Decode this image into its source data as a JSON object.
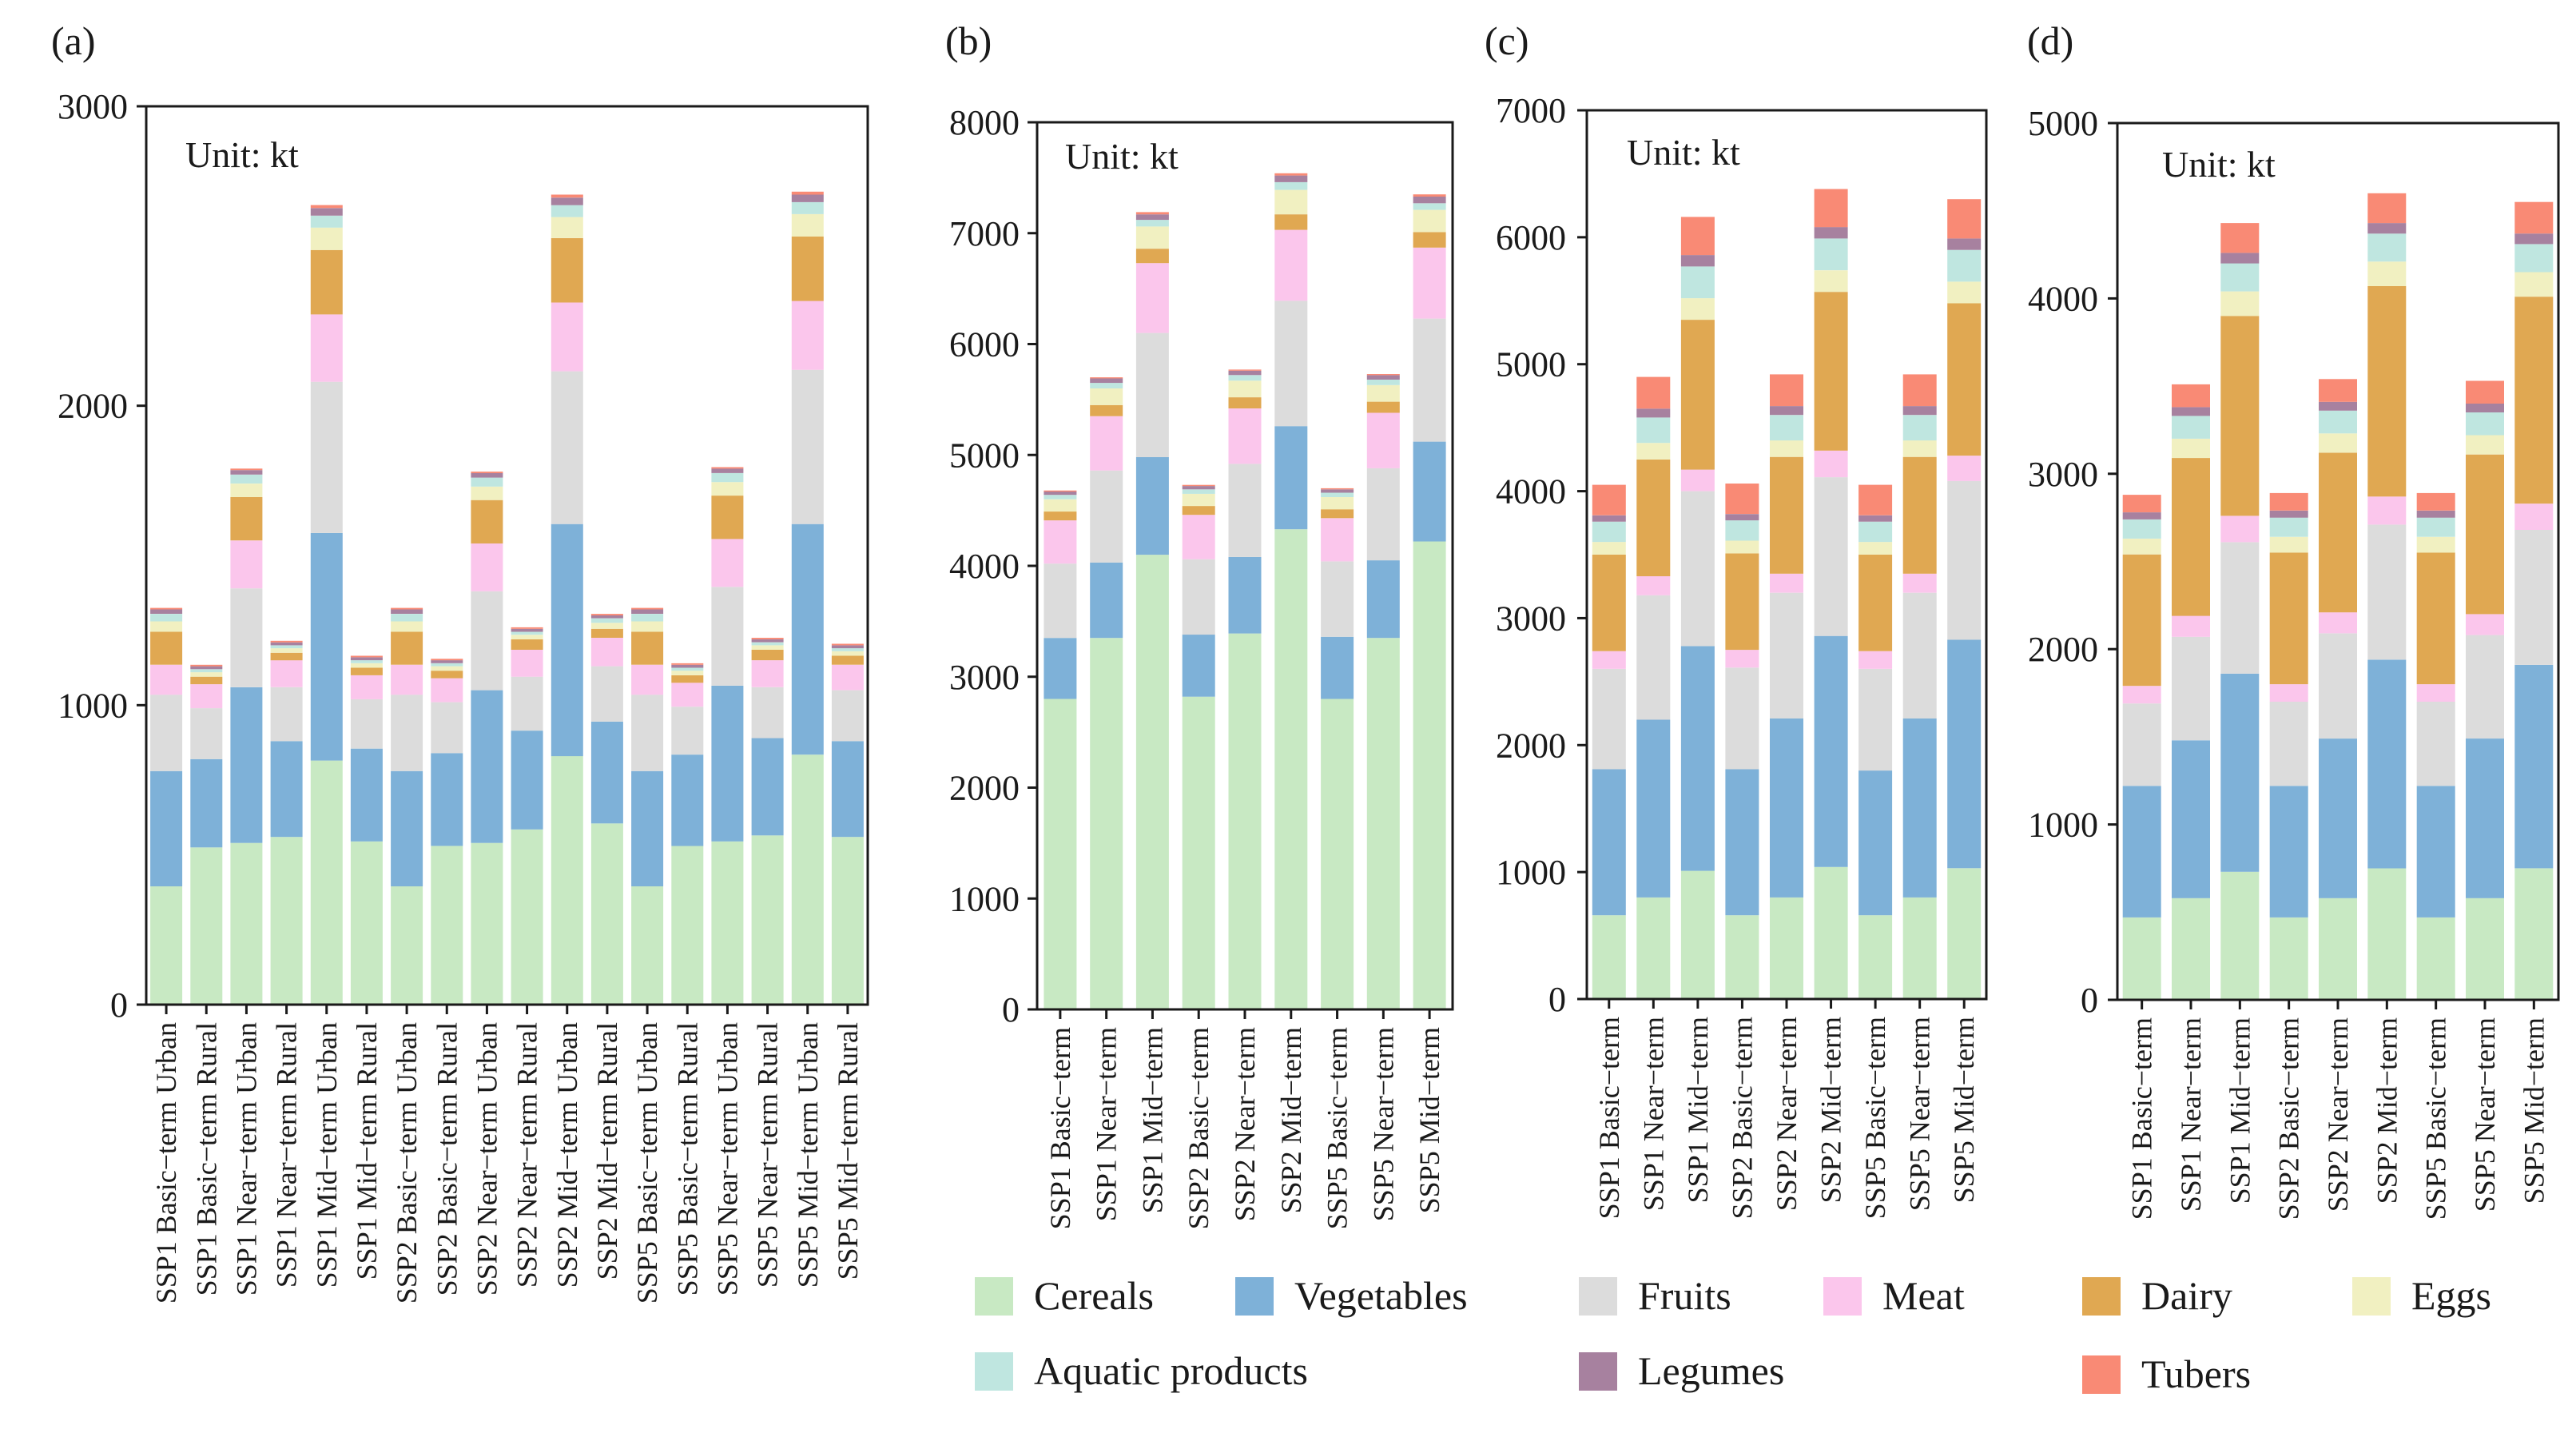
{
  "colors": {
    "Cereals": "#c8e9c3",
    "Vegetables": "#7eb1d8",
    "Fruits": "#dcdcdc",
    "Meat": "#fbc6ec",
    "Dairy": "#e0a852",
    "Eggs": "#f1f0c1",
    "Aquatic products": "#bfe6e0",
    "Legumes": "#a7819f",
    "Tubers": "#f98a75"
  },
  "legend": {
    "items": [
      "Cereals",
      "Vegetables",
      "Fruits",
      "Meat",
      "Dairy",
      "Eggs",
      "Aquatic products",
      "Legumes",
      "Tubers"
    ]
  },
  "chart_data": [
    {
      "panel": "(a)",
      "type": "bar",
      "stacked": true,
      "unit_label": "Unit: kt",
      "ylim": [
        0,
        3000
      ],
      "yticks": [
        0,
        1000,
        2000,
        3000
      ],
      "categories": [
        "SSP1 Basic−term Urban",
        "SSP1 Basic−term Rural",
        "SSP1 Near−term Urban",
        "SSP1 Near−term Rural",
        "SSP1 Mid−term Urban",
        "SSP1 Mid−term Rural",
        "SSP2 Basic−term Urban",
        "SSP2 Basic−term Rural",
        "SSP2 Near−term Urban",
        "SSP2 Near−term Rural",
        "SSP2 Mid−term Urban",
        "SSP2 Mid−term Rural",
        "SSP5 Basic−term Urban",
        "SSP5 Basic−term Rural",
        "SSP5 Near−term Urban",
        "SSP5 Near−term Rural",
        "SSP5 Mid−term Urban",
        "SSP5 Mid−term Rural"
      ],
      "series": [
        {
          "name": "Cereals",
          "values": [
            395,
            525,
            540,
            560,
            815,
            545,
            395,
            530,
            540,
            585,
            830,
            605,
            395,
            530,
            545,
            565,
            835,
            560
          ]
        },
        {
          "name": "Vegetables",
          "values": [
            385,
            295,
            520,
            320,
            760,
            310,
            385,
            310,
            510,
            330,
            775,
            340,
            385,
            305,
            520,
            325,
            770,
            320
          ]
        },
        {
          "name": "Fruits",
          "values": [
            255,
            170,
            330,
            180,
            505,
            165,
            255,
            170,
            330,
            180,
            510,
            185,
            255,
            160,
            330,
            170,
            515,
            170
          ]
        },
        {
          "name": "Meat",
          "values": [
            100,
            80,
            160,
            90,
            225,
            80,
            100,
            80,
            160,
            90,
            230,
            95,
            100,
            80,
            160,
            90,
            230,
            85
          ]
        },
        {
          "name": "Dairy",
          "values": [
            110,
            25,
            145,
            25,
            215,
            25,
            110,
            25,
            145,
            35,
            215,
            30,
            110,
            25,
            145,
            35,
            215,
            30
          ]
        },
        {
          "name": "Eggs",
          "values": [
            35,
            15,
            45,
            15,
            75,
            15,
            35,
            15,
            45,
            15,
            70,
            20,
            35,
            15,
            45,
            15,
            75,
            15
          ]
        },
        {
          "name": "Aquatic products",
          "values": [
            25,
            10,
            30,
            10,
            40,
            10,
            25,
            10,
            30,
            10,
            40,
            15,
            25,
            10,
            30,
            10,
            40,
            10
          ]
        },
        {
          "name": "Legumes",
          "values": [
            15,
            10,
            15,
            10,
            25,
            10,
            15,
            10,
            15,
            10,
            25,
            10,
            15,
            10,
            15,
            10,
            25,
            10
          ]
        },
        {
          "name": "Tubers",
          "values": [
            5,
            5,
            5,
            5,
            10,
            5,
            5,
            5,
            5,
            5,
            10,
            5,
            5,
            5,
            5,
            5,
            10,
            5
          ]
        }
      ]
    },
    {
      "panel": "(b)",
      "type": "bar",
      "stacked": true,
      "unit_label": "Unit: kt",
      "ylim": [
        0,
        8000
      ],
      "yticks": [
        0,
        1000,
        2000,
        3000,
        4000,
        5000,
        6000,
        7000,
        8000
      ],
      "categories": [
        "SSP1 Basic−term",
        "SSP1 Near−term",
        "SSP1 Mid−term",
        "SSP2 Basic−term",
        "SSP2 Near−term",
        "SSP2 Mid−term",
        "SSP5 Basic−term",
        "SSP5 Near−term",
        "SSP5 Mid−term"
      ],
      "series": [
        {
          "name": "Cereals",
          "values": [
            2800,
            3350,
            4100,
            2820,
            3390,
            4330,
            2800,
            3350,
            4220
          ]
        },
        {
          "name": "Vegetables",
          "values": [
            550,
            680,
            880,
            560,
            690,
            930,
            560,
            700,
            900
          ]
        },
        {
          "name": "Fruits",
          "values": [
            670,
            830,
            1120,
            680,
            840,
            1130,
            680,
            830,
            1110
          ]
        },
        {
          "name": "Meat",
          "values": [
            390,
            490,
            630,
            400,
            500,
            640,
            390,
            500,
            640
          ]
        },
        {
          "name": "Dairy",
          "values": [
            80,
            100,
            130,
            80,
            100,
            140,
            80,
            100,
            140
          ]
        },
        {
          "name": "Eggs",
          "values": [
            110,
            150,
            200,
            110,
            150,
            220,
            110,
            150,
            200
          ]
        },
        {
          "name": "Aquatic products",
          "values": [
            40,
            50,
            60,
            40,
            50,
            70,
            40,
            50,
            60
          ]
        },
        {
          "name": "Legumes",
          "values": [
            30,
            40,
            50,
            30,
            40,
            60,
            30,
            40,
            60
          ]
        },
        {
          "name": "Tubers",
          "values": [
            10,
            10,
            20,
            10,
            10,
            20,
            10,
            10,
            20
          ]
        }
      ]
    },
    {
      "panel": "(c)",
      "type": "bar",
      "stacked": true,
      "unit_label": "Unit: kt",
      "ylim": [
        0,
        7000
      ],
      "yticks": [
        0,
        1000,
        2000,
        3000,
        4000,
        5000,
        6000,
        7000
      ],
      "categories": [
        "SSP1 Basic−term",
        "SSP1 Near−term",
        "SSP1 Mid−term",
        "SSP2 Basic−term",
        "SSP2 Near−term",
        "SSP2 Mid−term",
        "SSP5 Basic−term",
        "SSP5 Near−term",
        "SSP5 Mid−term"
      ],
      "series": [
        {
          "name": "Cereals",
          "values": [
            660,
            800,
            1010,
            660,
            800,
            1040,
            660,
            800,
            1030
          ]
        },
        {
          "name": "Vegetables",
          "values": [
            1150,
            1400,
            1770,
            1150,
            1410,
            1820,
            1140,
            1410,
            1800
          ]
        },
        {
          "name": "Fruits",
          "values": [
            790,
            980,
            1220,
            800,
            990,
            1250,
            800,
            990,
            1250
          ]
        },
        {
          "name": "Meat",
          "values": [
            140,
            150,
            170,
            140,
            150,
            210,
            140,
            150,
            200
          ]
        },
        {
          "name": "Dairy",
          "values": [
            760,
            920,
            1180,
            760,
            920,
            1250,
            760,
            920,
            1200
          ]
        },
        {
          "name": "Eggs",
          "values": [
            100,
            130,
            170,
            100,
            130,
            170,
            100,
            130,
            170
          ]
        },
        {
          "name": "Aquatic products",
          "values": [
            160,
            200,
            250,
            160,
            200,
            250,
            160,
            200,
            250
          ]
        },
        {
          "name": "Legumes",
          "values": [
            50,
            70,
            90,
            50,
            70,
            90,
            50,
            70,
            90
          ]
        },
        {
          "name": "Tubers",
          "values": [
            240,
            250,
            300,
            240,
            250,
            300,
            240,
            250,
            310
          ]
        }
      ]
    },
    {
      "panel": "(d)",
      "type": "bar",
      "stacked": true,
      "unit_label": "Unit: kt",
      "ylim": [
        0,
        5000
      ],
      "yticks": [
        0,
        1000,
        2000,
        3000,
        4000,
        5000
      ],
      "categories": [
        "SSP1 Basic−term",
        "SSP1 Near−term",
        "SSP1 Mid−term",
        "SSP2 Basic−term",
        "SSP2 Near−term",
        "SSP2 Mid−term",
        "SSP5 Basic−term",
        "SSP5 Near−term",
        "SSP5 Mid−term"
      ],
      "series": [
        {
          "name": "Cereals",
          "values": [
            470,
            580,
            730,
            470,
            580,
            750,
            470,
            580,
            750
          ]
        },
        {
          "name": "Vegetables",
          "values": [
            750,
            900,
            1130,
            750,
            910,
            1190,
            750,
            910,
            1160
          ]
        },
        {
          "name": "Fruits",
          "values": [
            470,
            590,
            750,
            480,
            600,
            770,
            480,
            590,
            770
          ]
        },
        {
          "name": "Meat",
          "values": [
            100,
            120,
            150,
            100,
            120,
            160,
            100,
            120,
            150
          ]
        },
        {
          "name": "Dairy",
          "values": [
            750,
            900,
            1140,
            750,
            910,
            1200,
            750,
            910,
            1180
          ]
        },
        {
          "name": "Eggs",
          "values": [
            90,
            110,
            140,
            90,
            110,
            140,
            90,
            110,
            140
          ]
        },
        {
          "name": "Aquatic products",
          "values": [
            110,
            130,
            160,
            110,
            130,
            160,
            110,
            130,
            160
          ]
        },
        {
          "name": "Legumes",
          "values": [
            40,
            50,
            60,
            40,
            50,
            60,
            40,
            50,
            60
          ]
        },
        {
          "name": "Tubers",
          "values": [
            100,
            130,
            170,
            100,
            130,
            170,
            100,
            130,
            180
          ]
        }
      ]
    }
  ]
}
